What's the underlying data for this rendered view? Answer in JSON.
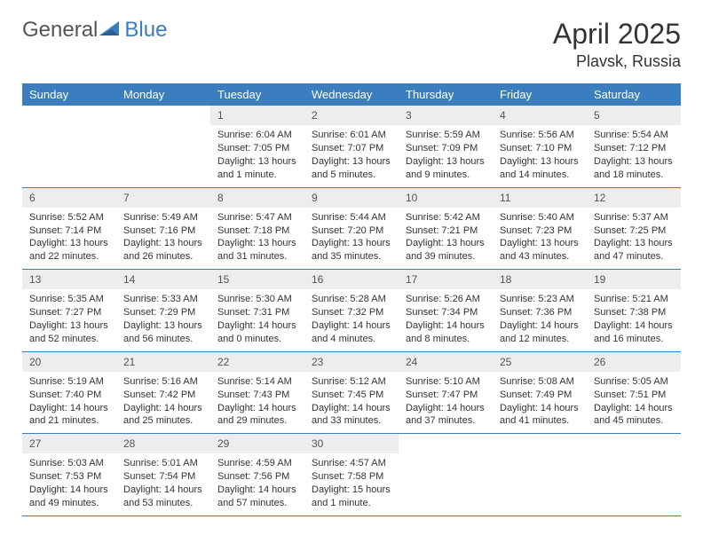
{
  "logo": {
    "word1": "General",
    "word2": "Blue"
  },
  "title": "April 2025",
  "location": "Plavsk, Russia",
  "colors": {
    "brand_blue": "#3a7ebf",
    "header_bg": "#3a7ebf",
    "daynum_bg": "#ebedef",
    "text": "#333333",
    "page_bg": "#ffffff"
  },
  "weekdays": [
    "Sunday",
    "Monday",
    "Tuesday",
    "Wednesday",
    "Thursday",
    "Friday",
    "Saturday"
  ],
  "first_weekday_index": 2,
  "days": [
    {
      "n": 1,
      "sunrise": "6:04 AM",
      "sunset": "7:05 PM",
      "daylight": "13 hours and 1 minute."
    },
    {
      "n": 2,
      "sunrise": "6:01 AM",
      "sunset": "7:07 PM",
      "daylight": "13 hours and 5 minutes."
    },
    {
      "n": 3,
      "sunrise": "5:59 AM",
      "sunset": "7:09 PM",
      "daylight": "13 hours and 9 minutes."
    },
    {
      "n": 4,
      "sunrise": "5:56 AM",
      "sunset": "7:10 PM",
      "daylight": "13 hours and 14 minutes."
    },
    {
      "n": 5,
      "sunrise": "5:54 AM",
      "sunset": "7:12 PM",
      "daylight": "13 hours and 18 minutes."
    },
    {
      "n": 6,
      "sunrise": "5:52 AM",
      "sunset": "7:14 PM",
      "daylight": "13 hours and 22 minutes."
    },
    {
      "n": 7,
      "sunrise": "5:49 AM",
      "sunset": "7:16 PM",
      "daylight": "13 hours and 26 minutes."
    },
    {
      "n": 8,
      "sunrise": "5:47 AM",
      "sunset": "7:18 PM",
      "daylight": "13 hours and 31 minutes."
    },
    {
      "n": 9,
      "sunrise": "5:44 AM",
      "sunset": "7:20 PM",
      "daylight": "13 hours and 35 minutes."
    },
    {
      "n": 10,
      "sunrise": "5:42 AM",
      "sunset": "7:21 PM",
      "daylight": "13 hours and 39 minutes."
    },
    {
      "n": 11,
      "sunrise": "5:40 AM",
      "sunset": "7:23 PM",
      "daylight": "13 hours and 43 minutes."
    },
    {
      "n": 12,
      "sunrise": "5:37 AM",
      "sunset": "7:25 PM",
      "daylight": "13 hours and 47 minutes."
    },
    {
      "n": 13,
      "sunrise": "5:35 AM",
      "sunset": "7:27 PM",
      "daylight": "13 hours and 52 minutes."
    },
    {
      "n": 14,
      "sunrise": "5:33 AM",
      "sunset": "7:29 PM",
      "daylight": "13 hours and 56 minutes."
    },
    {
      "n": 15,
      "sunrise": "5:30 AM",
      "sunset": "7:31 PM",
      "daylight": "14 hours and 0 minutes."
    },
    {
      "n": 16,
      "sunrise": "5:28 AM",
      "sunset": "7:32 PM",
      "daylight": "14 hours and 4 minutes."
    },
    {
      "n": 17,
      "sunrise": "5:26 AM",
      "sunset": "7:34 PM",
      "daylight": "14 hours and 8 minutes."
    },
    {
      "n": 18,
      "sunrise": "5:23 AM",
      "sunset": "7:36 PM",
      "daylight": "14 hours and 12 minutes."
    },
    {
      "n": 19,
      "sunrise": "5:21 AM",
      "sunset": "7:38 PM",
      "daylight": "14 hours and 16 minutes."
    },
    {
      "n": 20,
      "sunrise": "5:19 AM",
      "sunset": "7:40 PM",
      "daylight": "14 hours and 21 minutes."
    },
    {
      "n": 21,
      "sunrise": "5:16 AM",
      "sunset": "7:42 PM",
      "daylight": "14 hours and 25 minutes."
    },
    {
      "n": 22,
      "sunrise": "5:14 AM",
      "sunset": "7:43 PM",
      "daylight": "14 hours and 29 minutes."
    },
    {
      "n": 23,
      "sunrise": "5:12 AM",
      "sunset": "7:45 PM",
      "daylight": "14 hours and 33 minutes."
    },
    {
      "n": 24,
      "sunrise": "5:10 AM",
      "sunset": "7:47 PM",
      "daylight": "14 hours and 37 minutes."
    },
    {
      "n": 25,
      "sunrise": "5:08 AM",
      "sunset": "7:49 PM",
      "daylight": "14 hours and 41 minutes."
    },
    {
      "n": 26,
      "sunrise": "5:05 AM",
      "sunset": "7:51 PM",
      "daylight": "14 hours and 45 minutes."
    },
    {
      "n": 27,
      "sunrise": "5:03 AM",
      "sunset": "7:53 PM",
      "daylight": "14 hours and 49 minutes."
    },
    {
      "n": 28,
      "sunrise": "5:01 AM",
      "sunset": "7:54 PM",
      "daylight": "14 hours and 53 minutes."
    },
    {
      "n": 29,
      "sunrise": "4:59 AM",
      "sunset": "7:56 PM",
      "daylight": "14 hours and 57 minutes."
    },
    {
      "n": 30,
      "sunrise": "4:57 AM",
      "sunset": "7:58 PM",
      "daylight": "15 hours and 1 minute."
    }
  ],
  "labels": {
    "sunrise": "Sunrise:",
    "sunset": "Sunset:",
    "daylight": "Daylight:"
  }
}
